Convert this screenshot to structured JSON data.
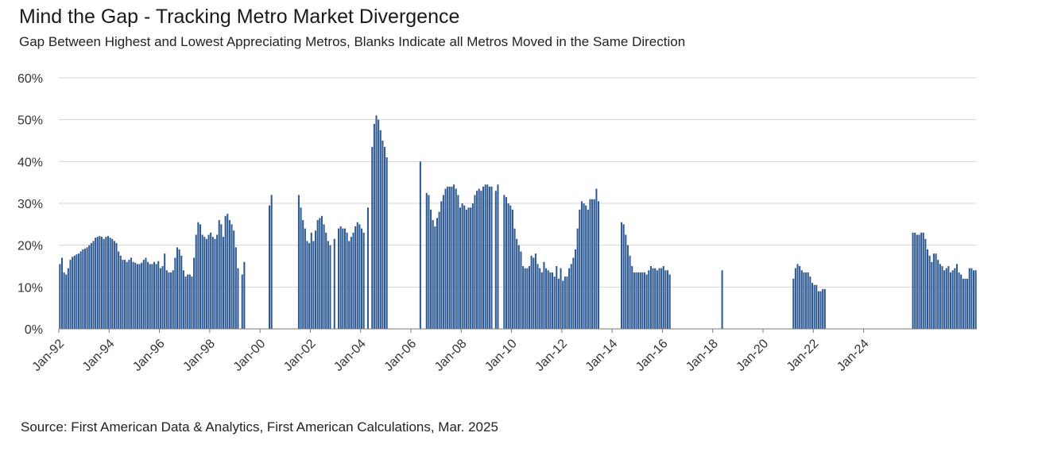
{
  "title": "Mind the Gap - Tracking Metro Market Divergence",
  "subtitle": "Gap Between Highest and Lowest Appreciating Metros, Blanks Indicate all Metros Moved in the Same Direction",
  "source": "Source: First American Data & Analytics, First American Calculations, Mar. 2025",
  "chart_data": {
    "type": "bar",
    "title": "Mind the Gap - Tracking Metro Market Divergence",
    "xlabel": "",
    "ylabel": "",
    "ylim": [
      0,
      60
    ],
    "y_ticks": [
      0,
      10,
      20,
      30,
      40,
      50,
      60
    ],
    "y_tick_labels": [
      "0%",
      "10%",
      "20%",
      "30%",
      "40%",
      "50%",
      "60%"
    ],
    "x_tick_labels": [
      "Jan-92",
      "Jan-94",
      "Jan-96",
      "Jan-98",
      "Jan-00",
      "Jan-02",
      "Jan-04",
      "Jan-06",
      "Jan-08",
      "Jan-10",
      "Jan-12",
      "Jan-14",
      "Jan-16",
      "Jan-18",
      "Jan-20",
      "Jan-22",
      "Jan-24"
    ],
    "grid": true,
    "legend": "none",
    "bar_color": "#2e5a93",
    "start": "Jan-92",
    "frequency": "monthly",
    "values": [
      15.5,
      17.0,
      13.5,
      13.0,
      14.5,
      16.5,
      17.2,
      17.5,
      17.8,
      18.0,
      18.5,
      19.0,
      19.2,
      19.5,
      20.0,
      20.5,
      21.0,
      21.8,
      22.0,
      22.2,
      22.0,
      21.5,
      22.0,
      22.2,
      21.8,
      21.5,
      21.0,
      20.5,
      18.5,
      17.5,
      16.5,
      16.5,
      16.0,
      16.5,
      17.0,
      16.0,
      15.8,
      15.5,
      15.5,
      15.8,
      16.5,
      17.0,
      16.0,
      15.5,
      15.5,
      16.0,
      15.5,
      16.2,
      14.5,
      15.0,
      18.0,
      14.0,
      13.5,
      13.5,
      14.0,
      17.0,
      19.5,
      19.0,
      17.5,
      14.0,
      12.5,
      13.0,
      13.0,
      12.5,
      17.0,
      22.5,
      25.5,
      25.0,
      22.5,
      22.0,
      21.5,
      22.5,
      23.0,
      22.0,
      21.5,
      22.5,
      26.0,
      25.0,
      22.0,
      27.0,
      27.5,
      26.0,
      25.0,
      23.5,
      19.5,
      14.5,
      null,
      13.0,
      16.0,
      null,
      null,
      null,
      null,
      null,
      null,
      null,
      null,
      null,
      null,
      null,
      29.5,
      32.0,
      null,
      null,
      null,
      null,
      null,
      null,
      null,
      null,
      null,
      null,
      null,
      null,
      32.0,
      29.0,
      26.0,
      24.0,
      21.0,
      20.5,
      23.0,
      21.0,
      23.5,
      26.0,
      26.5,
      27.0,
      25.0,
      23.0,
      21.0,
      20.0,
      null,
      21.5,
      null,
      24.0,
      24.5,
      24.0,
      24.0,
      23.0,
      21.0,
      22.0,
      23.0,
      24.5,
      25.5,
      25.0,
      24.0,
      23.0,
      null,
      29.0,
      null,
      43.5,
      49.0,
      51.0,
      50.0,
      47.5,
      45.0,
      43.5,
      41.0,
      null,
      null,
      null,
      null,
      null,
      null,
      null,
      null,
      null,
      null,
      null,
      null,
      null,
      null,
      null,
      40.0,
      null,
      null,
      32.5,
      32.0,
      28.5,
      26.0,
      24.5,
      26.5,
      28.0,
      30.5,
      32.0,
      33.5,
      34.0,
      34.0,
      34.0,
      34.5,
      33.5,
      32.0,
      29.0,
      30.0,
      29.5,
      28.5,
      29.0,
      29.0,
      30.0,
      32.0,
      33.0,
      33.5,
      33.0,
      34.0,
      34.5,
      34.5,
      34.0,
      34.0,
      null,
      33.0,
      34.5,
      null,
      null,
      32.0,
      31.5,
      30.0,
      29.5,
      28.5,
      24.0,
      21.5,
      20.0,
      18.5,
      15.0,
      14.5,
      14.5,
      15.0,
      17.5,
      17.0,
      18.0,
      15.5,
      14.5,
      13.5,
      16.0,
      14.5,
      14.0,
      13.5,
      13.5,
      12.5,
      15.0,
      12.0,
      14.5,
      11.5,
      12.5,
      12.5,
      14.5,
      15.5,
      17.0,
      19.0,
      24.0,
      28.5,
      30.5,
      30.0,
      29.5,
      28.5,
      31.0,
      31.0,
      31.0,
      33.5,
      30.5,
      null,
      null,
      null,
      null,
      null,
      null,
      null,
      null,
      null,
      null,
      25.5,
      25.0,
      22.5,
      20.0,
      17.5,
      15.0,
      13.5,
      13.5,
      13.5,
      13.5,
      13.5,
      13.5,
      13.0,
      14.0,
      15.0,
      14.5,
      14.5,
      14.0,
      14.5,
      14.5,
      15.0,
      14.0,
      14.0,
      13.0,
      null,
      null,
      null,
      null,
      null,
      null,
      null,
      null,
      null,
      null,
      null,
      null,
      null,
      null,
      null,
      null,
      null,
      null,
      null,
      null,
      null,
      null,
      null,
      null,
      14.0,
      null,
      null,
      null,
      null,
      null,
      null,
      null,
      null,
      null,
      null,
      null,
      null,
      null,
      null,
      null,
      null,
      null,
      null,
      null,
      null,
      null,
      null,
      null,
      null,
      null,
      null,
      null,
      null,
      null,
      null,
      null,
      null,
      null,
      12.0,
      14.5,
      15.5,
      15.0,
      14.0,
      13.5,
      13.5,
      13.5,
      12.5,
      11.0,
      10.5,
      10.5,
      9.0,
      9.0,
      9.5,
      9.5,
      null,
      null,
      null,
      null,
      null,
      null,
      null,
      null,
      null,
      null,
      null,
      null,
      null,
      null,
      null,
      null,
      null,
      null,
      null,
      null,
      null,
      null,
      null,
      null,
      null,
      null,
      null,
      null,
      null,
      null,
      null,
      null,
      null,
      null,
      null,
      null,
      null,
      null,
      null,
      null,
      null,
      23.0,
      23.0,
      22.5,
      22.5,
      23.0,
      23.0,
      21.5,
      19.0,
      17.5,
      16.0,
      18.0,
      18.0,
      16.5,
      15.5,
      15.0,
      14.0,
      14.5,
      15.0,
      13.5,
      14.0,
      14.5,
      15.5,
      13.5,
      13.0,
      12.0,
      12.0,
      12.0,
      14.5,
      14.5,
      14.0,
      14.0
    ]
  }
}
